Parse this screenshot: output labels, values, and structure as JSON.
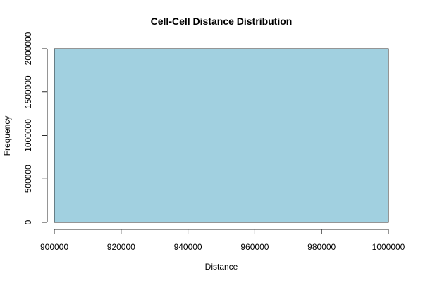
{
  "chart_data": {
    "type": "bar",
    "title": "Cell-Cell Distance Distribution",
    "xlabel": "Distance",
    "ylabel": "Frequency",
    "bins": [
      {
        "x_start": 900000,
        "x_end": 1000000,
        "value": 2000000
      }
    ],
    "xlim": [
      900000,
      1000000
    ],
    "ylim": [
      0,
      2000000
    ],
    "x_ticks": [
      900000,
      920000,
      940000,
      960000,
      980000,
      1000000
    ],
    "y_ticks": [
      0,
      500000,
      1000000,
      1500000,
      2000000
    ],
    "x_tick_labels": [
      "900000",
      "920000",
      "940000",
      "960000",
      "980000",
      "1000000"
    ],
    "y_tick_labels": [
      "0",
      "500000",
      "1000000",
      "1500000",
      "2000000"
    ],
    "grid": false,
    "colors": {
      "bar_fill": "#a1d0e0",
      "bar_stroke": "#2b2b2b",
      "axis": "#2b2b2b"
    }
  }
}
